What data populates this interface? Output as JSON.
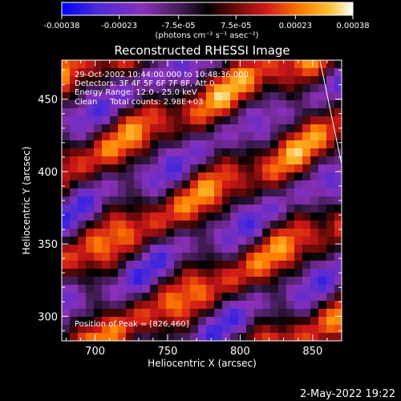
{
  "chart_data": {
    "type": "heatmap",
    "title": "Reconstructed RHESSI Image",
    "xlabel": "Heliocentric X (arcsec)",
    "ylabel": "Heliocentric Y (arcsec)",
    "xlim": [
      677,
      870
    ],
    "ylim": [
      283,
      477
    ],
    "x_ticks": [
      {
        "value": 700,
        "label": "700"
      },
      {
        "value": 750,
        "label": "750"
      },
      {
        "value": 800,
        "label": "800"
      },
      {
        "value": 850,
        "label": "850"
      }
    ],
    "y_ticks": [
      {
        "value": 300,
        "label": "300"
      },
      {
        "value": 350,
        "label": "350"
      },
      {
        "value": 400,
        "label": "400"
      },
      {
        "value": 450,
        "label": "450"
      }
    ],
    "colorbar": {
      "range": [
        -0.00038,
        0.00038
      ],
      "tick_labels": [
        {
          "value": -0.00038,
          "label": "-0.00038"
        },
        {
          "value": -0.00023,
          "label": "-0.00023"
        },
        {
          "value": -7.5e-05,
          "label": "-7.5e-05"
        },
        {
          "value": 7.5e-05,
          "label": "7.5e-05"
        },
        {
          "value": 0.00023,
          "label": "0.00023"
        },
        {
          "value": 0.00038,
          "label": "0.00038"
        }
      ],
      "unit_label": "(photons cm⁻² s⁻¹ asec⁻²)"
    },
    "annotations": [
      "29-Oct-2002 10:44:00.000 to 10:48:36.000",
      "Detectors: 3F 4F 5F 6F 7F 8F, Att 0",
      "Energy Range: 12.0 - 25.0 keV",
      "Clean     Total counts: 2.98E+03"
    ],
    "peak_label": "Position of Peak = [826,460]",
    "peak_position": [
      826,
      460
    ],
    "limb_line": [
      [
        855,
        477
      ],
      [
        870,
        405
      ]
    ],
    "colors": {
      "negative_low": "#2020ff",
      "negative_mid": "#a030c0",
      "zero": "#000000",
      "positive_mid": "#d82020",
      "positive_high": "#ff8c00",
      "peak": "#ffffc8"
    }
  },
  "footer": {
    "date": "2-May-2022 19:22"
  }
}
